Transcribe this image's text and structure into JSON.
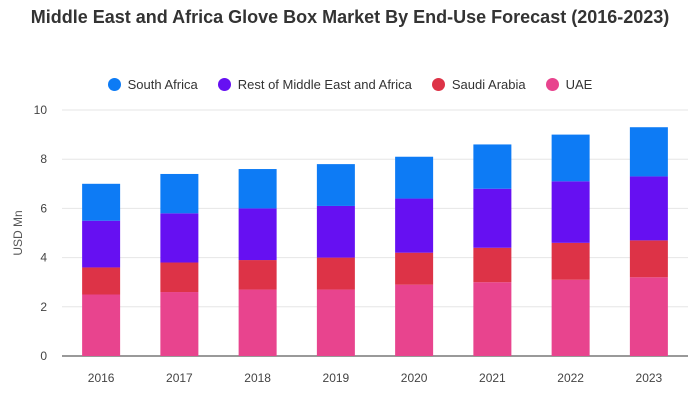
{
  "chart_data": {
    "type": "bar",
    "stacked": true,
    "title": "Middle East and Africa Glove Box Market By End-Use Forecast (2016-2023)",
    "xlabel": "",
    "ylabel": "USD Mn",
    "ylim": [
      0,
      10
    ],
    "yticks": [
      "0",
      "2",
      "4",
      "6",
      "8",
      "10"
    ],
    "grid": true,
    "legend_position": "top-center",
    "categories": [
      "2016",
      "2017",
      "2018",
      "2019",
      "2020",
      "2021",
      "2022",
      "2023"
    ],
    "series": [
      {
        "name": "UAE",
        "color": "#e8448e",
        "values": [
          2.5,
          2.6,
          2.7,
          2.7,
          2.9,
          3.0,
          3.1,
          3.2
        ]
      },
      {
        "name": "Saudi Arabia",
        "color": "#dd3347",
        "values": [
          1.1,
          1.2,
          1.2,
          1.3,
          1.3,
          1.4,
          1.5,
          1.5
        ]
      },
      {
        "name": "Rest of Middle East and Africa",
        "color": "#6610f2",
        "values": [
          1.9,
          2.0,
          2.1,
          2.1,
          2.2,
          2.4,
          2.5,
          2.6
        ]
      },
      {
        "name": "South Africa",
        "color": "#0d7bf5",
        "values": [
          1.5,
          1.6,
          1.6,
          1.7,
          1.7,
          1.8,
          1.9,
          2.0
        ]
      }
    ],
    "legend_order": [
      "South Africa",
      "Rest of Middle East and Africa",
      "Saudi Arabia",
      "UAE"
    ]
  }
}
